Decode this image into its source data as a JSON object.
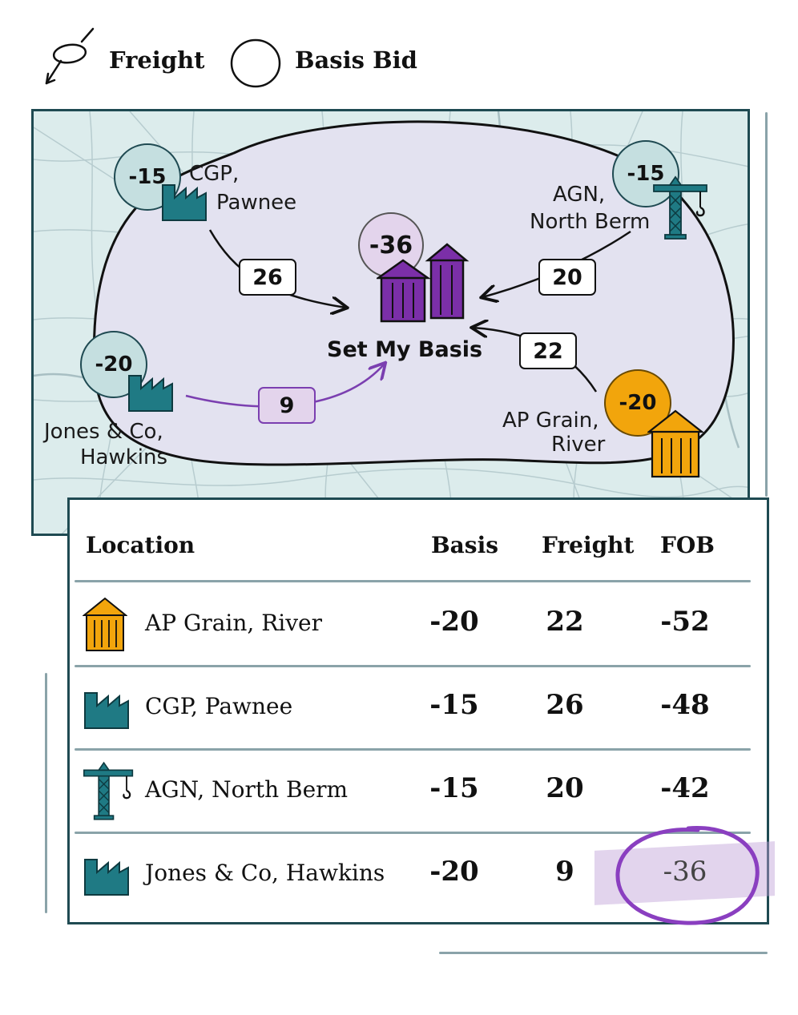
{
  "legend": {
    "freight_label": "Freight",
    "basis_label": "Basis Bid",
    "freight_icon": "freight-arrow-icon",
    "basis_icon": "basis-circle-icon"
  },
  "map": {
    "center": {
      "label": "Set My Basis",
      "bid": "-36",
      "icon": "grain-bins-icon"
    },
    "locations": [
      {
        "id": "cgp",
        "bid": "-15",
        "label_line1": "CGP,",
        "label_line2": "Pawnee",
        "freight": "26",
        "icon": "factory-icon"
      },
      {
        "id": "agn",
        "bid": "-15",
        "label_line1": "AGN,",
        "label_line2": "North Berm",
        "freight": "20",
        "icon": "crane-icon"
      },
      {
        "id": "jones",
        "bid": "-20",
        "label_line1": "Jones & Co,",
        "label_line2": "Hawkins",
        "freight": "9",
        "icon": "factory-icon"
      },
      {
        "id": "ap",
        "bid": "-20",
        "label_line1": "AP Grain,",
        "label_line2": "River",
        "freight": "22",
        "icon": "grain-silo-icon"
      }
    ]
  },
  "table": {
    "headers": {
      "location": "Location",
      "basis": "Basis",
      "freight": "Freight",
      "fob": "FOB"
    },
    "rows": [
      {
        "location": "AP Grain, River",
        "basis": "-20",
        "freight": "22",
        "fob": "-52",
        "icon": "grain-silo-icon"
      },
      {
        "location": "CGP, Pawnee",
        "basis": "-15",
        "freight": "26",
        "fob": "-48",
        "icon": "factory-icon"
      },
      {
        "location": "AGN, North Berm",
        "basis": "-15",
        "freight": "20",
        "fob": "-42",
        "icon": "crane-icon"
      },
      {
        "location": "Jones & Co, Hawkins",
        "basis": "-20",
        "freight": "9",
        "fob": "-36",
        "icon": "factory-icon",
        "highlight": true
      }
    ]
  },
  "colors": {
    "teal": "#1f7a84",
    "teal_light": "#c5dfe0",
    "purple": "#7b3fb0",
    "purple_light": "#e3d4ec",
    "orange": "#f2a50c",
    "map_bg": "#dcecec",
    "region": "#e3e2f0"
  }
}
